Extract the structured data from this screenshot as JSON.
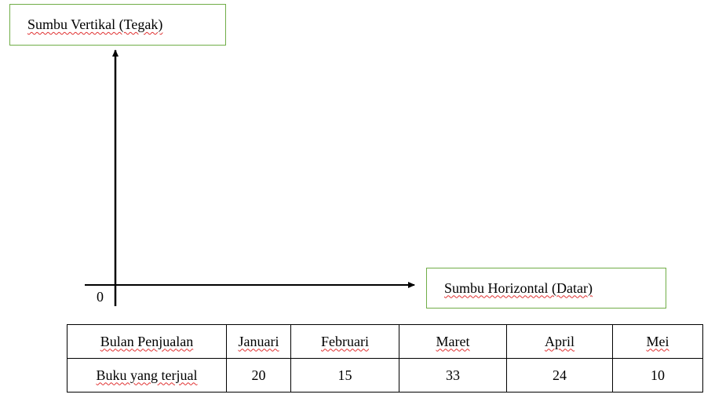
{
  "axis_labels": {
    "vertical": "Sumbu Vertikal (Tegak)",
    "horizontal": "Sumbu Horizontal (Datar)",
    "origin": "0"
  },
  "table": {
    "rows": [
      [
        "Bulan Penjualan",
        "Januari",
        "Februari",
        "Maret",
        "April",
        "Mei"
      ],
      [
        "Buku yang terjual",
        "20",
        "15",
        "33",
        "24",
        "10"
      ]
    ]
  }
}
